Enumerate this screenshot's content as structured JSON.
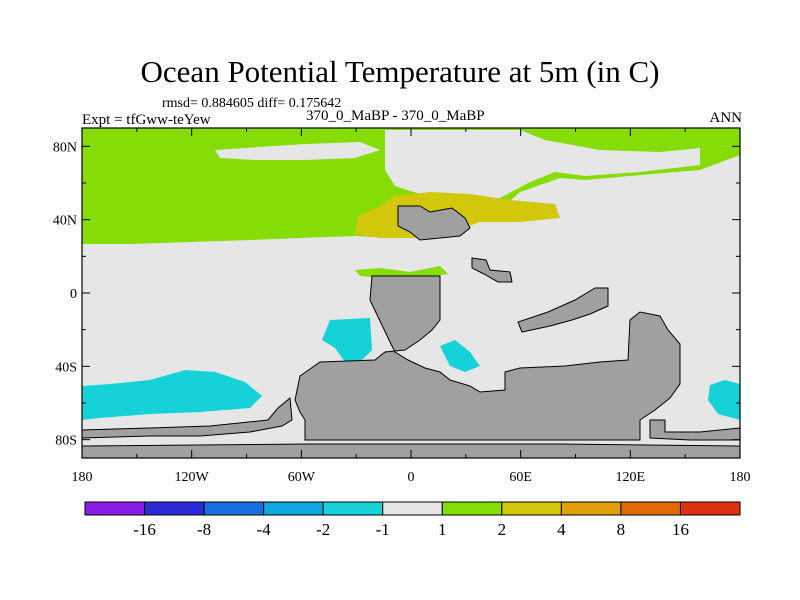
{
  "chart_data": {
    "type": "heatmap",
    "title": "Ocean Potential Temperature at 5m (in C)",
    "stats_text": "rmsd= 0.884605 diff= 0.175642",
    "left_label": "Expt = tfGww-teYew",
    "center_label": "370_0_MaBP - 370_0_MaBP",
    "right_label": "ANN",
    "x_ticks": [
      "180",
      "120W",
      "60W",
      "0",
      "60E",
      "120E",
      "180"
    ],
    "y_ticks": [
      "80N",
      "40N",
      "0",
      "40S",
      "80S"
    ],
    "xlim": [
      -180,
      180
    ],
    "ylim": [
      -90,
      90
    ],
    "colorbar": {
      "labels": [
        "-16",
        "-8",
        "-4",
        "-2",
        "-1",
        "1",
        "2",
        "4",
        "8",
        "16"
      ],
      "colors": [
        "#8a1ee6",
        "#2a2ad6",
        "#1a6fe0",
        "#10a8e0",
        "#14d2d8",
        "#e6e6e6",
        "#86dc05",
        "#d2c70a",
        "#e0a00a",
        "#e06a08",
        "#e03010"
      ]
    },
    "legend_color_land": "#a0a0a0",
    "legend_color_small": "#e6e6e6"
  }
}
